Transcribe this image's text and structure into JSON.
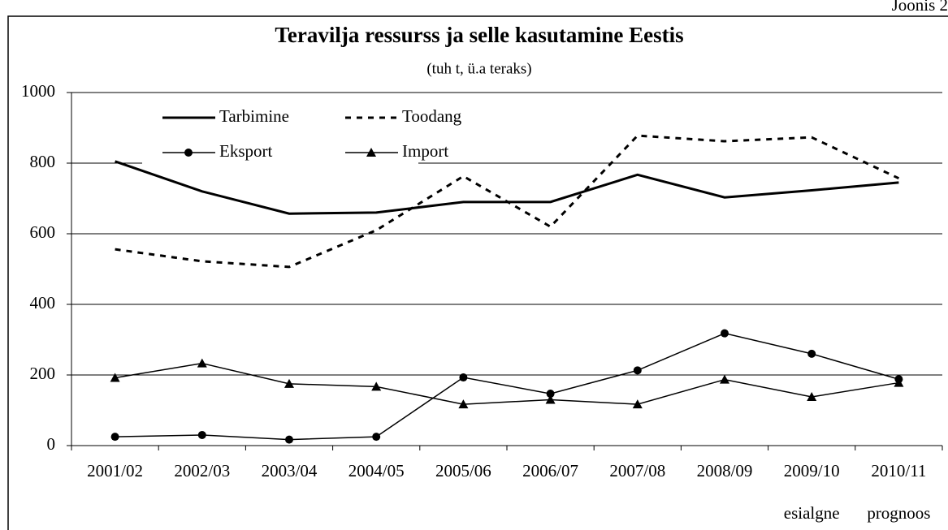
{
  "figure_label": "Joonis 2",
  "chart_data": {
    "type": "line",
    "title": "Teravilja ressurss ja selle kasutamine Eestis",
    "subtitle": "(tuh t, ü.a teraks)",
    "categories": [
      "2001/02",
      "2002/03",
      "2003/04",
      "2004/05",
      "2005/06",
      "2006/07",
      "2007/08",
      "2008/09",
      "2009/10",
      "2010/11"
    ],
    "category_notes": [
      null,
      null,
      null,
      null,
      null,
      null,
      null,
      null,
      "esialgne",
      "prognoos"
    ],
    "series": [
      {
        "name": "Tarbimine",
        "color": "#000000",
        "style": "solid-thick",
        "values": [
          805,
          720,
          657,
          660,
          690,
          690,
          767,
          703,
          723,
          745
        ]
      },
      {
        "name": "Toodang",
        "color": "#000000",
        "style": "dashed",
        "values": [
          556,
          522,
          506,
          610,
          763,
          620,
          878,
          862,
          873,
          757
        ]
      },
      {
        "name": "Eksport",
        "color": "#000000",
        "style": "circle",
        "values": [
          25,
          30,
          17,
          25,
          193,
          147,
          213,
          318,
          260,
          188
        ]
      },
      {
        "name": "Import",
        "color": "#000000",
        "style": "triangle",
        "values": [
          192,
          233,
          175,
          167,
          117,
          130,
          117,
          187,
          138,
          178
        ]
      }
    ],
    "ylim": [
      0,
      1000
    ],
    "yticks": [
      0,
      200,
      400,
      600,
      800,
      1000
    ],
    "grid": true,
    "legend": "top-left"
  }
}
